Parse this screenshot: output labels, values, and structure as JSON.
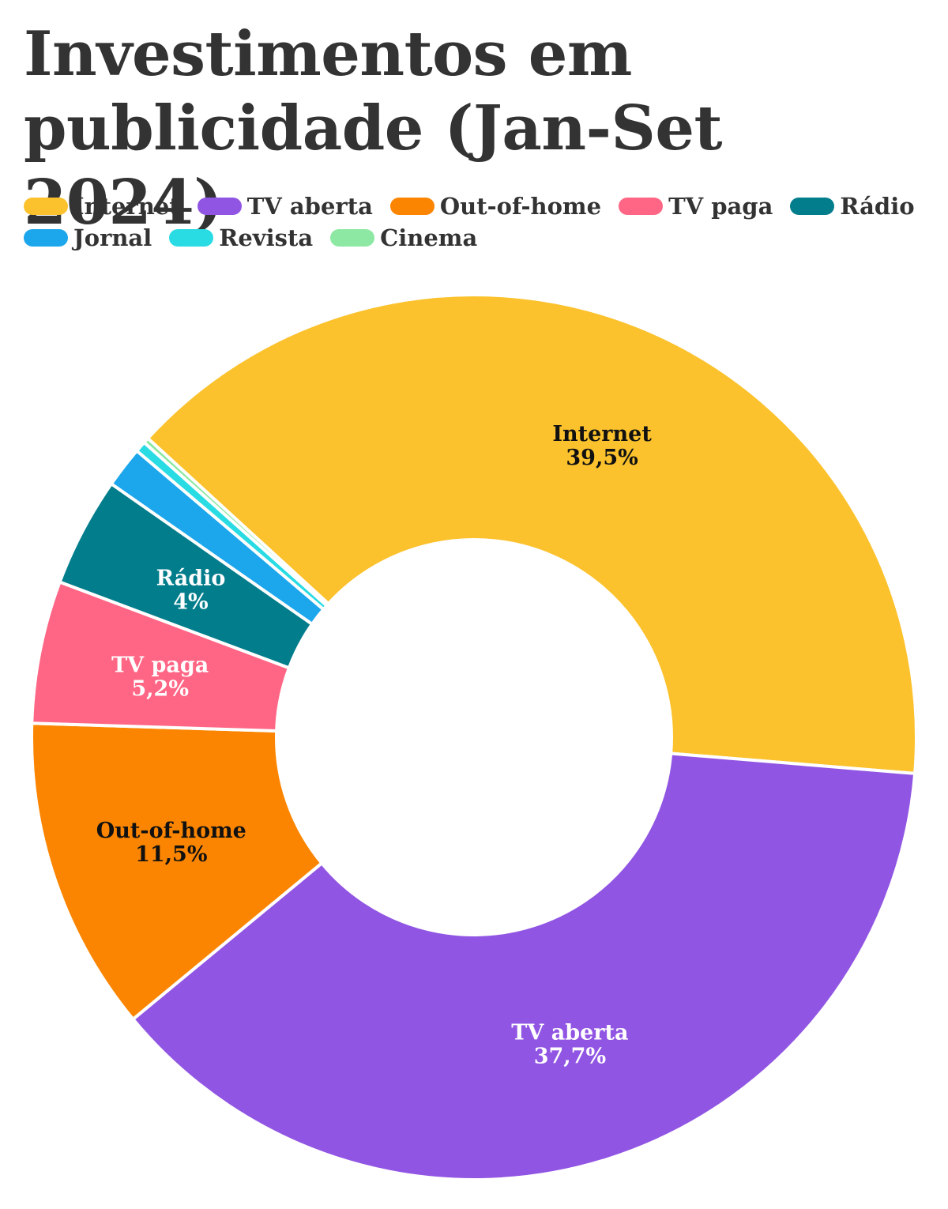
{
  "title": "Investimentos em publicidade (Jan-Set 2024)",
  "chart_data": {
    "type": "pie",
    "variant": "donut",
    "title": "Investimentos em publicidade (Jan-Set 2024)",
    "legend_position": "top",
    "unit": "%",
    "slices": [
      {
        "name": "Internet",
        "value": 39.5,
        "display": "39,5%",
        "color": "#FBC22D",
        "label_color": "#111111",
        "show_label": true
      },
      {
        "name": "TV aberta",
        "value": 37.7,
        "display": "37,7%",
        "color": "#9155E3",
        "label_color": "#ffffff",
        "show_label": true
      },
      {
        "name": "Out-of-home",
        "value": 11.5,
        "display": "11,5%",
        "color": "#FB8500",
        "label_color": "#111111",
        "show_label": true
      },
      {
        "name": "TV paga",
        "value": 5.2,
        "display": "5,2%",
        "color": "#FF6685",
        "label_color": "#ffffff",
        "show_label": true
      },
      {
        "name": "Rádio",
        "value": 4,
        "display": "4%",
        "color": "#027D8C",
        "label_color": "#ffffff",
        "show_label": true
      },
      {
        "name": "Jornal",
        "value": 1.5,
        "color": "#1CA6EC",
        "show_label": false
      },
      {
        "name": "Revista",
        "value": 0.4,
        "color": "#29DBE3",
        "show_label": false
      },
      {
        "name": "Cinema",
        "value": 0.2,
        "color": "#8DE8A3",
        "show_label": false
      }
    ]
  }
}
